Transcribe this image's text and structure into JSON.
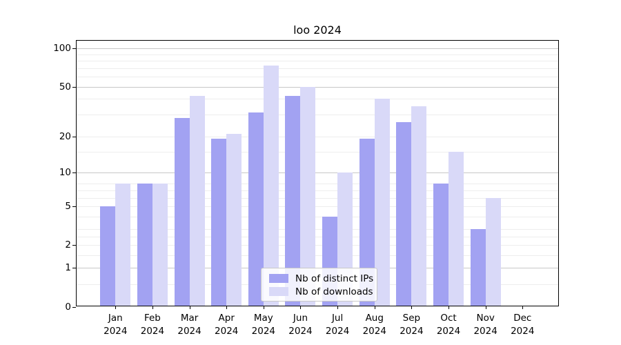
{
  "title": "loo 2024",
  "colors": {
    "ips": "#a2a2f2",
    "downloads": "#d9d9f8",
    "grid_major": "#c7c7c7",
    "grid_minor": "#ededed",
    "spine": "#000000",
    "legend_border": "#c8c8c8"
  },
  "chart_data": {
    "type": "bar",
    "title": "loo 2024",
    "y_scale": "log(1+y)",
    "ylim": [
      0,
      100
    ],
    "y_ticks": [
      100,
      50,
      20,
      10,
      5,
      2,
      1,
      0
    ],
    "grid": {
      "major": [
        100,
        50,
        10,
        1
      ],
      "minor": [
        90,
        80,
        70,
        60,
        40,
        30,
        20,
        15,
        8,
        7,
        6,
        5,
        4,
        3,
        2.5,
        2,
        1.5,
        0.5
      ]
    },
    "categories": [
      {
        "month": "Jan",
        "year": "2024"
      },
      {
        "month": "Feb",
        "year": "2024"
      },
      {
        "month": "Mar",
        "year": "2024"
      },
      {
        "month": "Apr",
        "year": "2024"
      },
      {
        "month": "May",
        "year": "2024"
      },
      {
        "month": "Jun",
        "year": "2024"
      },
      {
        "month": "Jul",
        "year": "2024"
      },
      {
        "month": "Aug",
        "year": "2024"
      },
      {
        "month": "Sep",
        "year": "2024"
      },
      {
        "month": "Oct",
        "year": "2024"
      },
      {
        "month": "Nov",
        "year": "2024"
      },
      {
        "month": "Dec",
        "year": "2024"
      }
    ],
    "series": [
      {
        "name": "Nb of distinct IPs",
        "color_key": "ips",
        "values": [
          5,
          8,
          28,
          19,
          31,
          42,
          4,
          19,
          26,
          8,
          3,
          0
        ]
      },
      {
        "name": "Nb of downloads",
        "color_key": "downloads",
        "values": [
          8,
          8,
          42,
          21,
          73,
          50,
          10,
          40,
          35,
          15,
          6,
          0
        ]
      }
    ],
    "legend_position": "lower center"
  }
}
